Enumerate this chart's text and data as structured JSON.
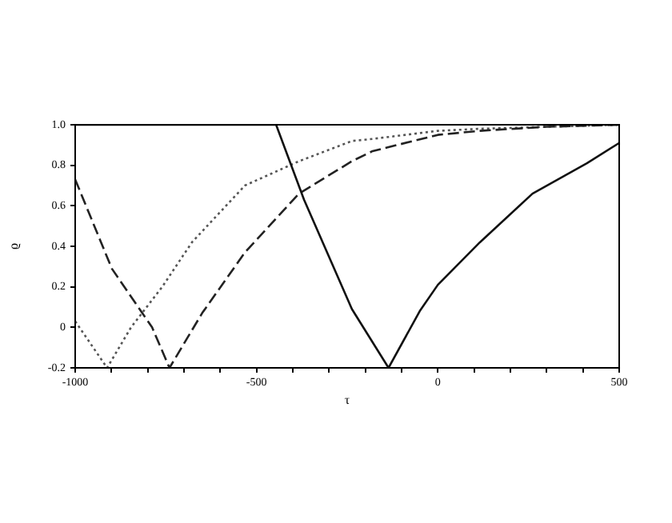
{
  "chart_data": {
    "type": "line",
    "xlabel": "τ",
    "ylabel": "ϱ",
    "xlim": [
      -1000,
      500
    ],
    "ylim": [
      -0.2,
      1.0
    ],
    "xticks": [
      -1000,
      {
        "value": -900,
        "label": null
      },
      {
        "value": -800,
        "label": null
      },
      {
        "value": -700,
        "label": null
      },
      {
        "value": -600,
        "label": null
      },
      -500,
      {
        "value": -400,
        "label": null
      },
      {
        "value": -300,
        "label": null
      },
      {
        "value": -200,
        "label": null
      },
      {
        "value": -100,
        "label": null
      },
      0,
      {
        "value": 100,
        "label": null
      },
      {
        "value": 200,
        "label": null
      },
      {
        "value": 300,
        "label": null
      },
      {
        "value": 400,
        "label": null
      },
      500
    ],
    "yticks": [
      {
        "value": -0.2,
        "label": "-0.2"
      },
      0,
      {
        "value": 0.2,
        "label": "0.2"
      },
      {
        "value": 0.4,
        "label": "0.4"
      },
      {
        "value": 0.6,
        "label": "0.6"
      },
      {
        "value": 0.8,
        "label": "0.8"
      },
      {
        "value": 1.0,
        "label": "1.0"
      }
    ],
    "grid": false,
    "legend": false,
    "marker": "none",
    "series": [
      {
        "color": "#111111",
        "line_style": "solid",
        "x": [
          -1000,
          -446,
          -369,
          -237,
          -136,
          -50,
          0,
          116,
          261,
          411,
          500
        ],
        "values": [
          1.0,
          1.0,
          0.63,
          0.09,
          -0.2,
          0.08,
          0.21,
          0.42,
          0.66,
          0.81,
          0.91
        ]
      },
      {
        "color": "#222222",
        "line_style": "dashed",
        "x": [
          -1000,
          -899,
          -788,
          -740,
          -650,
          -532,
          -383,
          -237,
          -180,
          0,
          116,
          300,
          500
        ],
        "values": [
          0.73,
          0.29,
          0,
          -0.2,
          0.07,
          0.37,
          0.66,
          0.82,
          0.87,
          0.95,
          0.97,
          0.99,
          1.0
        ]
      },
      {
        "color": "#555555",
        "line_style": "dotted",
        "x": [
          -1000,
          -912,
          -846,
          -760,
          -678,
          -532,
          -383,
          -237,
          -180,
          0,
          116,
          300,
          500
        ],
        "values": [
          0.03,
          -0.2,
          0,
          0.2,
          0.42,
          0.7,
          0.82,
          0.92,
          0.93,
          0.97,
          0.98,
          0.99,
          1.0
        ]
      }
    ]
  }
}
